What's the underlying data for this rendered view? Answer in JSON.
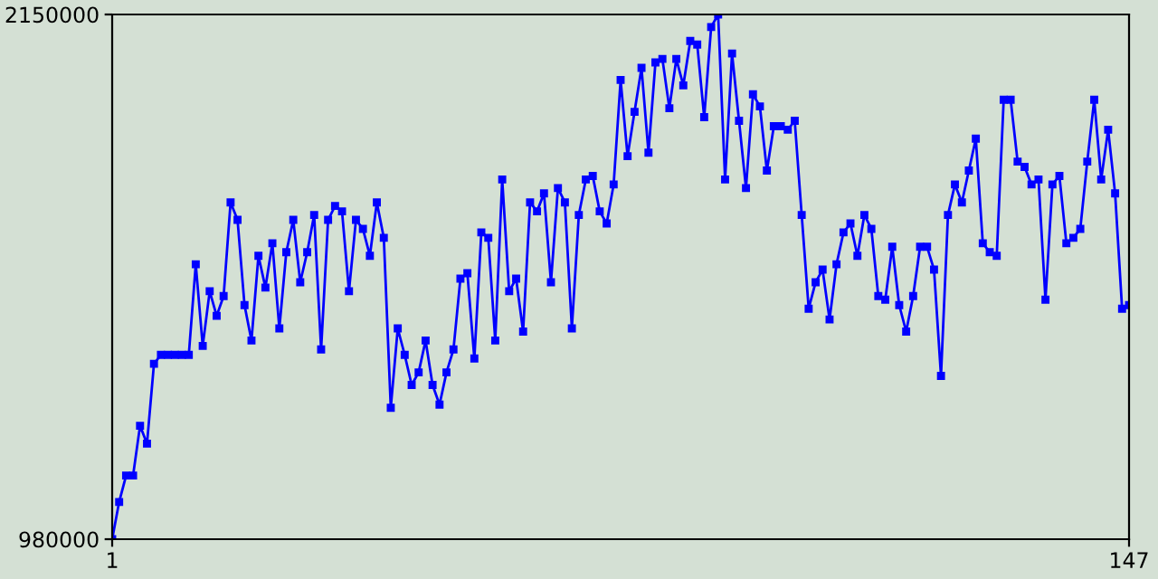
{
  "chart_data": {
    "type": "line",
    "x": [
      1,
      2,
      3,
      4,
      5,
      6,
      7,
      8,
      9,
      10,
      11,
      12,
      13,
      14,
      15,
      16,
      17,
      18,
      19,
      20,
      21,
      22,
      23,
      24,
      25,
      26,
      27,
      28,
      29,
      30,
      31,
      32,
      33,
      34,
      35,
      36,
      37,
      38,
      39,
      40,
      41,
      42,
      43,
      44,
      45,
      46,
      47,
      48,
      49,
      50,
      51,
      52,
      53,
      54,
      55,
      56,
      57,
      58,
      59,
      60,
      61,
      62,
      63,
      64,
      65,
      66,
      67,
      68,
      69,
      70,
      71,
      72,
      73,
      74,
      75,
      76,
      77,
      78,
      79,
      80,
      81,
      82,
      83,
      84,
      85,
      86,
      87,
      88,
      89,
      90,
      91,
      92,
      93,
      94,
      95,
      96,
      97,
      98,
      99,
      100,
      101,
      102,
      103,
      104,
      105,
      106,
      107,
      108,
      109,
      110,
      111,
      112,
      113,
      114,
      115,
      116,
      117,
      118,
      119,
      120,
      121,
      122,
      123,
      124,
      125,
      126,
      127,
      128,
      129,
      130,
      131,
      132,
      133,
      134,
      135,
      136,
      137,
      138,
      139,
      140,
      141,
      142,
      143,
      144,
      145,
      146,
      147
    ],
    "series": [
      {
        "color": "#0000ff",
        "values": [
          980000,
          1063000,
          1122000,
          1122000,
          1233000,
          1193000,
          1371000,
          1391000,
          1391000,
          1391000,
          1391000,
          1391000,
          1593000,
          1411000,
          1533000,
          1478000,
          1522000,
          1731000,
          1692000,
          1502000,
          1423000,
          1612000,
          1541000,
          1640000,
          1450000,
          1620000,
          1692000,
          1553000,
          1620000,
          1703000,
          1403000,
          1692000,
          1723000,
          1711000,
          1533000,
          1692000,
          1672000,
          1612000,
          1731000,
          1652000,
          1273000,
          1450000,
          1391000,
          1324000,
          1352000,
          1423000,
          1324000,
          1280000,
          1352000,
          1403000,
          1561000,
          1573000,
          1383000,
          1664000,
          1652000,
          1423000,
          1782000,
          1533000,
          1561000,
          1443000,
          1731000,
          1711000,
          1751000,
          1553000,
          1763000,
          1731000,
          1450000,
          1703000,
          1782000,
          1790000,
          1711000,
          1684000,
          1771000,
          2004000,
          1834000,
          1933000,
          2031000,
          1842000,
          2043000,
          2051000,
          1941000,
          2051000,
          1992000,
          2091000,
          2083000,
          1921000,
          2122000,
          2150000,
          1782000,
          2063000,
          1913000,
          1763000,
          1972000,
          1945000,
          1802000,
          1901000,
          1901000,
          1893000,
          1913000,
          1703000,
          1494000,
          1553000,
          1581000,
          1470000,
          1593000,
          1664000,
          1684000,
          1612000,
          1703000,
          1672000,
          1522000,
          1514000,
          1632000,
          1502000,
          1443000,
          1522000,
          1632000,
          1632000,
          1581000,
          1344000,
          1703000,
          1771000,
          1731000,
          1802000,
          1873000,
          1640000,
          1620000,
          1612000,
          1960000,
          1960000,
          1822000,
          1810000,
          1771000,
          1782000,
          1514000,
          1771000,
          1790000,
          1640000,
          1652000,
          1672000,
          1822000,
          1960000,
          1782000,
          1893000,
          1751000,
          1494000,
          1502000
        ]
      }
    ],
    "xlim": [
      1,
      147
    ],
    "xticks": [
      1,
      147
    ],
    "ylim": [
      980000,
      2150000
    ],
    "yticks": [
      980000,
      2150000
    ],
    "marker": "square",
    "line_style": "solid"
  }
}
